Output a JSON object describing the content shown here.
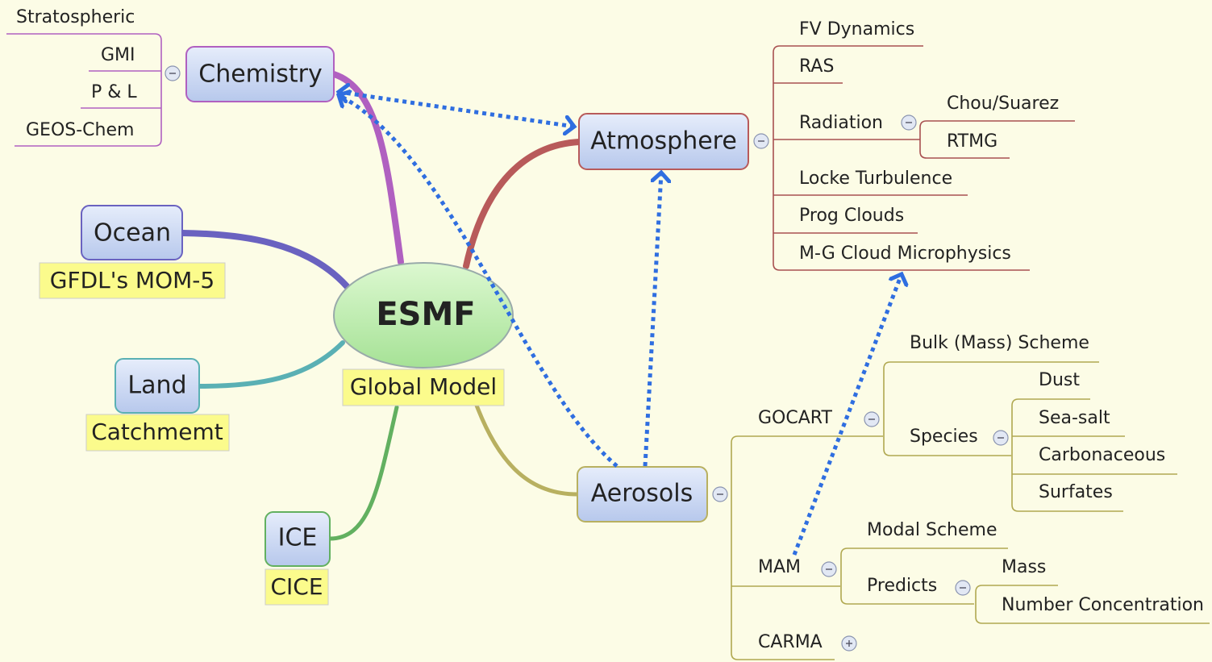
{
  "central": {
    "label": "ESMF",
    "note": "Global Model"
  },
  "chemistry": {
    "label": "Chemistry",
    "children": [
      "Stratospheric",
      "GMI",
      "P & L",
      "GEOS-Chem"
    ]
  },
  "ocean": {
    "label": "Ocean",
    "note": "GFDL's MOM-5"
  },
  "land": {
    "label": "Land",
    "note": "Catchmemt"
  },
  "ice": {
    "label": "ICE",
    "note": "CICE"
  },
  "atmosphere": {
    "label": "Atmosphere",
    "children": [
      "FV Dynamics",
      "RAS",
      "Radiation",
      "Locke Turbulence",
      "Prog Clouds",
      "M-G Cloud Microphysics"
    ],
    "radiation": [
      "Chou/Suarez",
      "RTMG"
    ]
  },
  "aerosols": {
    "label": "Aerosols",
    "children": [
      "GOCART",
      "MAM",
      "CARMA"
    ],
    "gocart": [
      "Bulk (Mass) Scheme",
      "Species"
    ],
    "species": [
      "Dust",
      "Sea-salt",
      "Carbonaceous",
      "Surfates"
    ],
    "mam": [
      "Modal Scheme",
      "Predicts"
    ],
    "predicts": [
      "Mass",
      "Number Concentration"
    ]
  }
}
